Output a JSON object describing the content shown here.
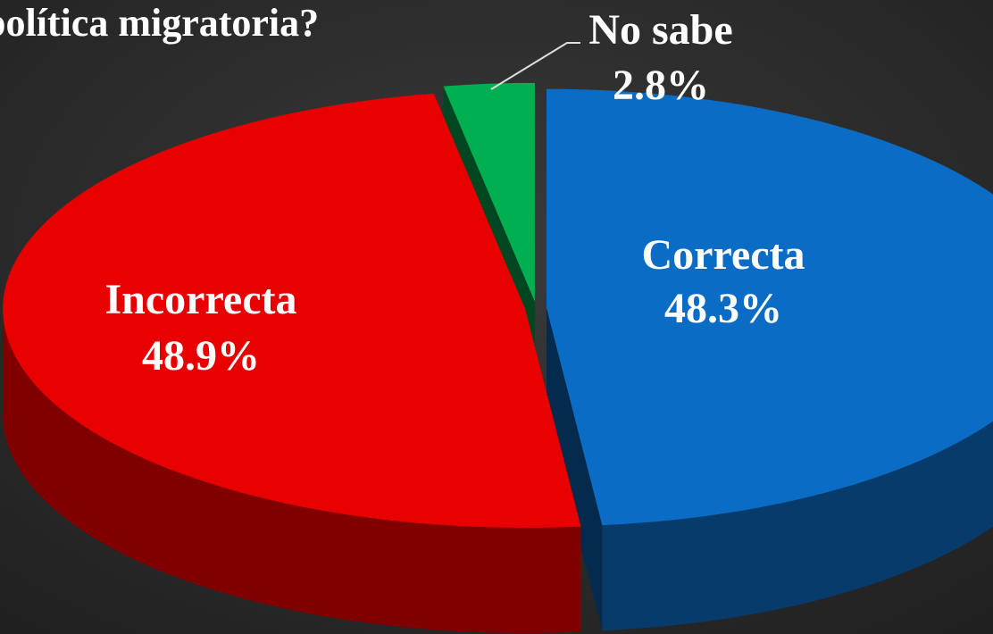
{
  "chart_data": {
    "type": "pie",
    "title": "política migratoria?",
    "categories": [
      "Correcta",
      "Incorrecta",
      "No sabe"
    ],
    "values": [
      48.3,
      48.9,
      2.8
    ],
    "value_labels": [
      "48.3%",
      "48.9%",
      "2.8%"
    ],
    "colors": [
      "#0a6cc4",
      "#e80000",
      "#00b050"
    ]
  }
}
